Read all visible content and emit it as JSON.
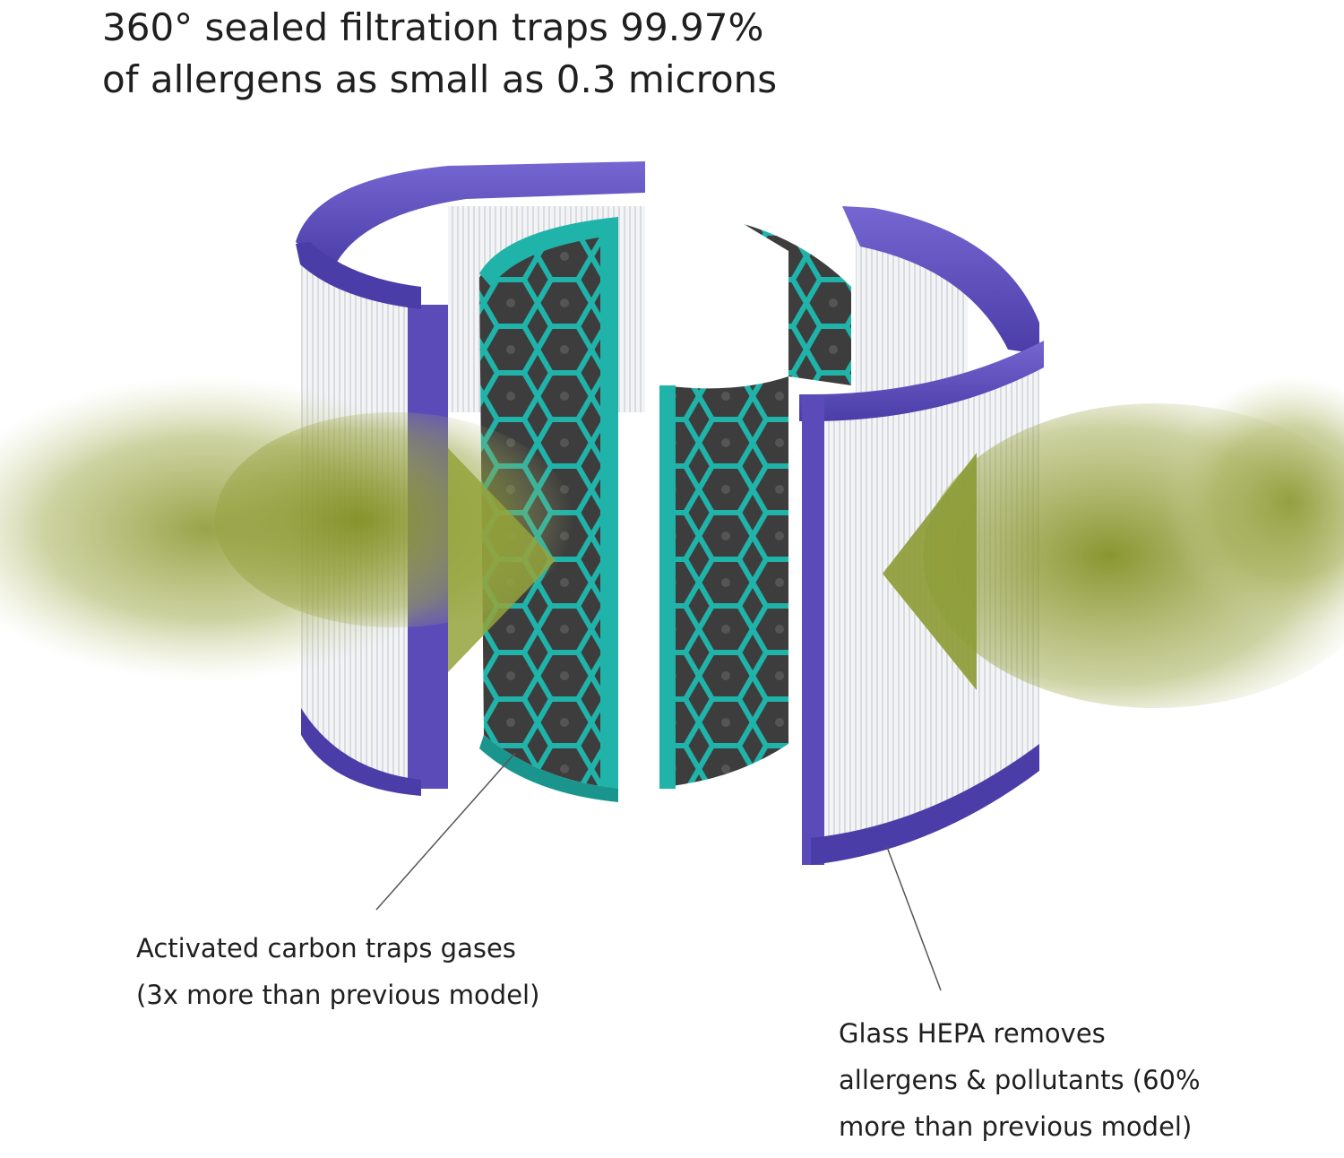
{
  "headline": {
    "line1": "360° sealed filtration traps 99.97%",
    "line2": "of allergens as small as 0.3 microns"
  },
  "callouts": {
    "carbon": {
      "line1": "Activated carbon traps gases",
      "line2": "(3x more than previous model)"
    },
    "hepa": {
      "line1": "Glass HEPA removes",
      "line2": "allergens & pollutants (60%",
      "line3": "more than previous model)"
    }
  },
  "colors": {
    "hepa_frame": "#5a4bb8",
    "hepa_frame_dark": "#3f3193",
    "carbon_frame": "#1fb3aa",
    "carbon_media": "#444444",
    "airflow": "#8a9a2e",
    "pleats": "#ecedf0"
  },
  "icons": [
    "airflow-arrow-left-icon",
    "airflow-arrow-right-icon"
  ]
}
